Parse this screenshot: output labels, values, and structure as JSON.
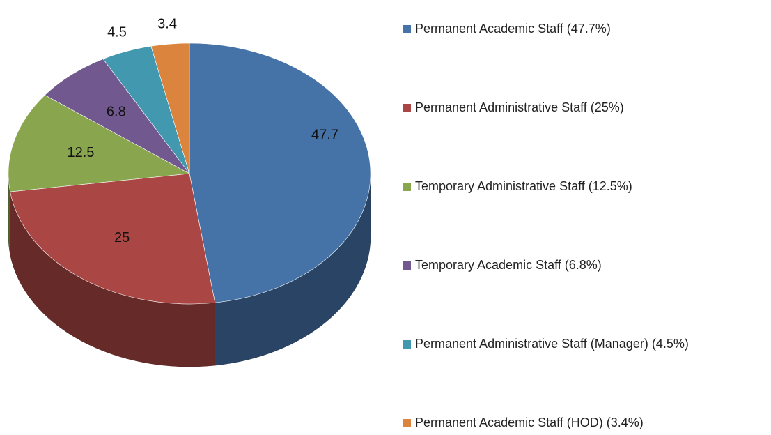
{
  "chart_data": {
    "type": "pie",
    "categories": [
      "Permanent Academic Staff (47.7%)",
      "Permanent Administrative Staff (25%)",
      "Temporary Administrative Staff (12.5%)",
      "Temporary Academic Staff (6.8%)",
      "Permanent Administrative Staff (Manager) (4.5%)",
      "Permanent Academic Staff (HOD) (3.4%)"
    ],
    "values": [
      47.7,
      25,
      12.5,
      6.8,
      4.5,
      3.4
    ],
    "colors": [
      "#4572a7",
      "#aa4643",
      "#89a54e",
      "#71588f",
      "#4198af",
      "#db843d"
    ],
    "legend": "right"
  }
}
